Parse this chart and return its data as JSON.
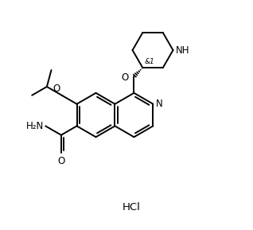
{
  "bg_color": "#ffffff",
  "line_color": "#000000",
  "line_width": 1.4,
  "font_size": 8.5,
  "stereo_label": "&1",
  "nh_label": "NH",
  "o_label": "O",
  "n_label": "N",
  "h2n_label": "H₂N",
  "amide_o_label": "O",
  "hcl_label": "HCl"
}
